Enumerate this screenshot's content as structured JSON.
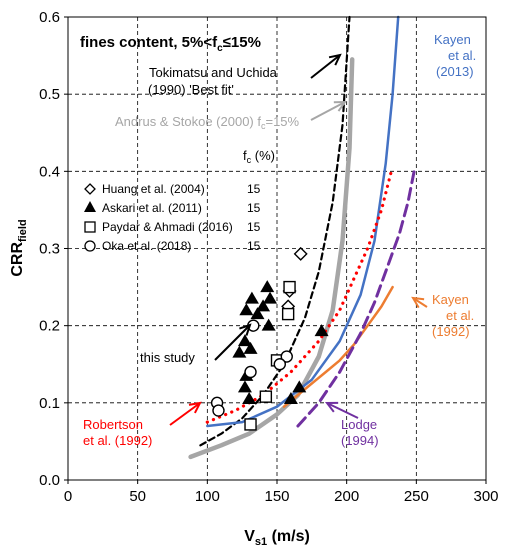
{
  "chart_data": {
    "type": "scatter",
    "xlabel_main": "V",
    "xlabel_sub": "s1",
    "xlabel_unit": " (m/s)",
    "ylabel_main": "CRR",
    "ylabel_sub": "field",
    "xlim": [
      0,
      300
    ],
    "ylim": [
      0.0,
      0.6
    ],
    "xticks": [
      0,
      50,
      100,
      150,
      200,
      250,
      300
    ],
    "yticks": [
      0.0,
      0.1,
      0.2,
      0.3,
      0.4,
      0.5,
      0.6
    ],
    "ytick_labels": [
      "0.0",
      "0.1",
      "0.2",
      "0.3",
      "0.4",
      "0.5",
      "0.6"
    ],
    "grid": "dashed",
    "header_main": "fines content, 5%<f",
    "header_sub": "c",
    "header_rest": "≤15%",
    "fc_header_main": "f",
    "fc_header_sub": "c",
    "fc_header_rest": " (%)",
    "legend": [
      {
        "marker": "diamond",
        "label": "Huang et al. (2004)",
        "fc": "15"
      },
      {
        "marker": "triangle",
        "label": "Askari et al. (2011)",
        "fc": "15"
      },
      {
        "marker": "square",
        "label": "Paydar & Ahmadi (2016)",
        "fc": "15"
      },
      {
        "marker": "circle",
        "label": "Oka et al. (2018)",
        "fc": "15"
      }
    ],
    "annotations": {
      "tokimatsu_1": "Tokimatsu and Uchida",
      "tokimatsu_2": "(1990) 'Best fit'",
      "andrus_main": "Andrus & Stokoe (2000) f",
      "andrus_sub": "c",
      "andrus_rest": "=15%",
      "kayen2013_1": "Kayen",
      "kayen2013_2": "et al.",
      "kayen2013_3": "(2013)",
      "kayen1992_1": "Kayen",
      "kayen1992_2": "et al.",
      "kayen1992_3": "(1992)",
      "robertson_1": "Robertson",
      "robertson_2": "et al. (1992)",
      "lodge_1": "Lodge",
      "lodge_2": "(1994)",
      "this_study": "this study"
    },
    "series": [
      {
        "name": "Tokimatsu and Uchida (1990) 'Best fit'",
        "style": "dashed",
        "color": "#000000",
        "x": [
          95,
          110,
          125,
          140,
          155,
          170,
          180,
          190,
          197,
          202
        ],
        "y": [
          0.045,
          0.06,
          0.08,
          0.11,
          0.15,
          0.21,
          0.27,
          0.36,
          0.46,
          0.6
        ]
      },
      {
        "name": "Andrus & Stokoe (2000) fc=15%",
        "style": "solid",
        "color": "#a6a6a6",
        "x": [
          88,
          110,
          130,
          150,
          165,
          180,
          190,
          197,
          202,
          204
        ],
        "y": [
          0.03,
          0.045,
          0.06,
          0.085,
          0.11,
          0.16,
          0.22,
          0.31,
          0.43,
          0.545
        ]
      },
      {
        "name": "Kayen et al. (2013)",
        "style": "solid",
        "color": "#4472c4",
        "x": [
          100,
          125,
          150,
          175,
          195,
          210,
          220,
          228,
          233,
          237
        ],
        "y": [
          0.07,
          0.075,
          0.095,
          0.13,
          0.18,
          0.24,
          0.31,
          0.41,
          0.5,
          0.6
        ]
      },
      {
        "name": "Kayen et al. (1992)",
        "style": "solid",
        "color": "#ed7d31",
        "x": [
          155,
          165,
          175,
          185,
          195,
          205,
          215,
          225,
          233
        ],
        "y": [
          0.095,
          0.11,
          0.125,
          0.14,
          0.155,
          0.175,
          0.2,
          0.225,
          0.25
        ]
      },
      {
        "name": "Robertson et al. (1992)",
        "style": "dotted",
        "color": "#ff0000",
        "x": [
          100,
          120,
          140,
          160,
          180,
          195,
          205,
          215,
          225,
          232
        ],
        "y": [
          0.075,
          0.09,
          0.11,
          0.14,
          0.18,
          0.22,
          0.26,
          0.3,
          0.35,
          0.4
        ]
      },
      {
        "name": "Lodge (1994)",
        "style": "dashed",
        "color": "#7030a0",
        "x": [
          165,
          180,
          195,
          210,
          220,
          230,
          238,
          244,
          249
        ],
        "y": [
          0.07,
          0.1,
          0.14,
          0.19,
          0.23,
          0.28,
          0.32,
          0.36,
          0.405
        ]
      }
    ],
    "points": [
      {
        "marker": "diamond",
        "x": 159,
        "y": 0.245
      },
      {
        "marker": "diamond",
        "x": 158,
        "y": 0.225
      },
      {
        "marker": "diamond",
        "x": 167,
        "y": 0.293
      },
      {
        "marker": "triangle",
        "x": 123,
        "y": 0.165
      },
      {
        "marker": "triangle",
        "x": 127,
        "y": 0.18
      },
      {
        "marker": "triangle",
        "x": 131,
        "y": 0.17
      },
      {
        "marker": "triangle",
        "x": 127,
        "y": 0.12
      },
      {
        "marker": "triangle",
        "x": 130,
        "y": 0.105
      },
      {
        "marker": "triangle",
        "x": 128,
        "y": 0.22
      },
      {
        "marker": "triangle",
        "x": 132,
        "y": 0.235
      },
      {
        "marker": "triangle",
        "x": 136,
        "y": 0.215
      },
      {
        "marker": "triangle",
        "x": 140,
        "y": 0.225
      },
      {
        "marker": "triangle",
        "x": 143,
        "y": 0.25
      },
      {
        "marker": "triangle",
        "x": 145,
        "y": 0.235
      },
      {
        "marker": "triangle",
        "x": 128,
        "y": 0.135
      },
      {
        "marker": "triangle",
        "x": 144,
        "y": 0.2
      },
      {
        "marker": "triangle",
        "x": 166,
        "y": 0.12
      },
      {
        "marker": "triangle",
        "x": 160,
        "y": 0.105
      },
      {
        "marker": "triangle",
        "x": 182,
        "y": 0.193
      },
      {
        "marker": "square",
        "x": 131,
        "y": 0.072
      },
      {
        "marker": "square",
        "x": 142,
        "y": 0.108
      },
      {
        "marker": "square",
        "x": 150,
        "y": 0.155
      },
      {
        "marker": "square",
        "x": 159,
        "y": 0.25
      },
      {
        "marker": "square",
        "x": 158,
        "y": 0.215
      },
      {
        "marker": "circle",
        "x": 107,
        "y": 0.1
      },
      {
        "marker": "circle",
        "x": 108,
        "y": 0.09
      },
      {
        "marker": "circle",
        "x": 131,
        "y": 0.14
      },
      {
        "marker": "circle",
        "x": 133,
        "y": 0.2
      },
      {
        "marker": "circle",
        "x": 157,
        "y": 0.16
      },
      {
        "marker": "circle",
        "x": 152,
        "y": 0.15
      }
    ]
  }
}
